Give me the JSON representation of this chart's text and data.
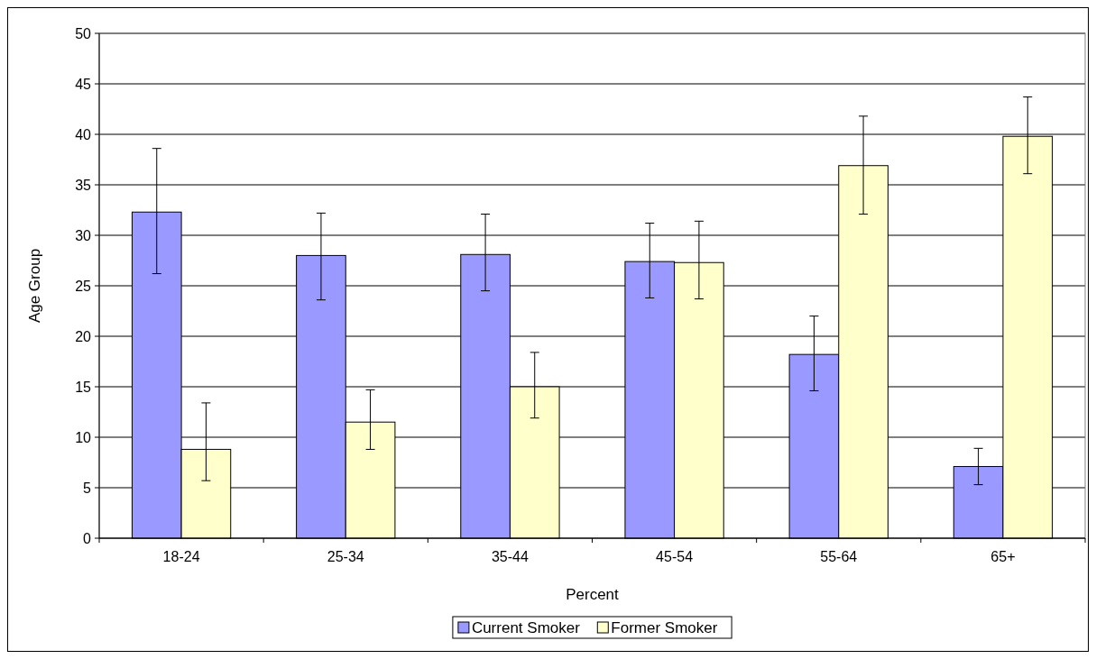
{
  "chart_data": {
    "type": "bar",
    "xlabel": "Percent",
    "ylabel": "Age Group",
    "categories": [
      "18-24",
      "25-34",
      "35-44",
      "45-54",
      "55-64",
      "65+"
    ],
    "series": [
      {
        "name": "Current Smoker",
        "color": "#9999ff",
        "values": [
          32.3,
          28.0,
          28.1,
          27.4,
          18.2,
          7.1
        ],
        "errors": [
          [
            26.2,
            38.6
          ],
          [
            23.6,
            32.2
          ],
          [
            24.5,
            32.1
          ],
          [
            23.8,
            31.2
          ],
          [
            14.6,
            22.0
          ],
          [
            5.3,
            8.9
          ]
        ]
      },
      {
        "name": "Former Smoker",
        "color": "#ffffcc",
        "values": [
          8.8,
          11.5,
          15.0,
          27.3,
          36.9,
          39.8
        ],
        "errors": [
          [
            5.7,
            13.4
          ],
          [
            8.8,
            14.7
          ],
          [
            11.9,
            18.4
          ],
          [
            23.7,
            31.4
          ],
          [
            32.1,
            41.8
          ],
          [
            36.1,
            43.7
          ]
        ]
      }
    ],
    "ylim": [
      0,
      50
    ],
    "yticks": [
      0,
      5,
      10,
      15,
      20,
      25,
      30,
      35,
      40,
      45,
      50
    ],
    "grid": "y",
    "legend": "bottom"
  }
}
